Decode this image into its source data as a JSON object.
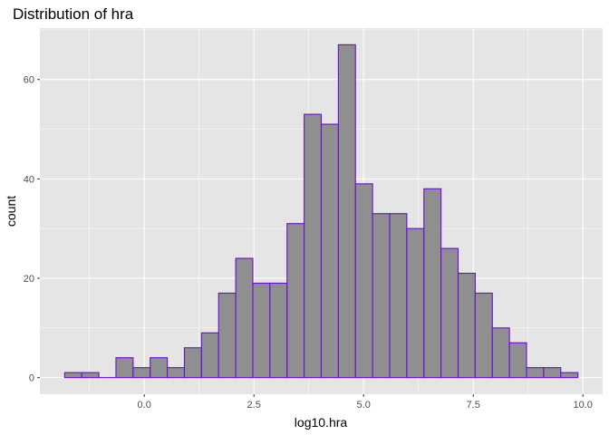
{
  "chart_data": {
    "type": "bar",
    "title": "Distribution of hra",
    "xlabel": "log10.hra",
    "ylabel": "count",
    "bin_width": 0.39,
    "bin_centers": [
      -1.62,
      -1.23,
      -0.84,
      -0.45,
      -0.06,
      0.33,
      0.72,
      1.11,
      1.5,
      1.89,
      2.28,
      2.67,
      3.06,
      3.45,
      3.84,
      4.23,
      4.62,
      5.01,
      5.4,
      5.79,
      6.18,
      6.57,
      6.96,
      7.35,
      7.74,
      8.13,
      8.52,
      8.91,
      9.3,
      9.69
    ],
    "values": [
      1,
      1,
      0,
      4,
      2,
      4,
      2,
      6,
      9,
      17,
      24,
      19,
      19,
      31,
      53,
      51,
      67,
      39,
      33,
      33,
      30,
      38,
      26,
      21,
      17,
      10,
      7,
      2,
      2,
      1
    ],
    "xlim": [
      -2.38,
      10.45
    ],
    "ylim": [
      -3.35,
      70.35
    ],
    "x_ticks": [
      0.0,
      2.5,
      5.0,
      7.5,
      10.0
    ],
    "x_tick_labels": [
      "0.0",
      "2.5",
      "5.0",
      "7.5",
      "10.0"
    ],
    "y_ticks": [
      0,
      20,
      40,
      60
    ],
    "y_tick_labels": [
      "0",
      "20",
      "40",
      "60"
    ],
    "grid": true,
    "colors": {
      "panel": "#e5e5e5",
      "grid_major": "#ffffff",
      "bar_fill": "#8f8f8f",
      "bar_outline": "#6a0dd4"
    }
  }
}
